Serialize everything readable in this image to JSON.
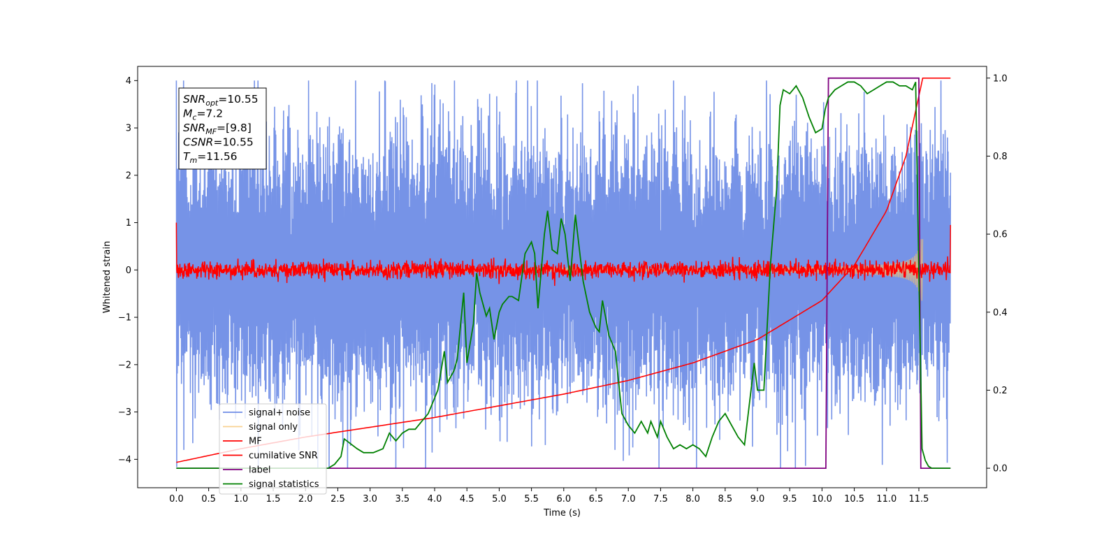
{
  "chart_data": {
    "type": "line",
    "xlabel": "Time (s)",
    "ylabel": "Whitened strain",
    "xlim": [
      -0.6,
      12.55
    ],
    "ylim": [
      -4.6,
      4.3
    ],
    "ylim_right": [
      -0.05,
      1.03
    ],
    "x_ticks": [
      "0.0",
      "0.5",
      "1.0",
      "1.5",
      "2.0",
      "2.5",
      "3.0",
      "3.5",
      "4.0",
      "4.5",
      "5.0",
      "5.5",
      "6.0",
      "6.5",
      "7.0",
      "7.5",
      "8.0",
      "8.5",
      "9.0",
      "9.5",
      "10.0",
      "10.5",
      "11.0",
      "11.5"
    ],
    "y_ticks": [
      "4",
      "3",
      "2",
      "1",
      "0",
      "−1",
      "−2",
      "−3",
      "−4"
    ],
    "y_ticks_right": [
      "1.0",
      "0.8",
      "0.6",
      "0.4",
      "0.2",
      "0.0"
    ],
    "grid": false,
    "legend_position": "lower-left",
    "annotation": {
      "lines": [
        {
          "sym": "SNR",
          "sub": "opt",
          "rest": "=10.55"
        },
        {
          "sym": "M",
          "sub": "c",
          "rest": "=7.2"
        },
        {
          "sym": "SNR",
          "sub": "MF",
          "rest": "=[9.8]"
        },
        {
          "sym": "CSNR",
          "sub": "",
          "rest": "=10.55"
        },
        {
          "sym": "T",
          "sub": "m",
          "rest": "=11.56"
        }
      ]
    },
    "series": [
      {
        "name": "signal+ noise",
        "color": "#6f8de6",
        "axis": "left",
        "noise_amplitude": 2.3,
        "x_range": [
          0.0,
          11.99
        ]
      },
      {
        "name": "signal only",
        "color": "#f5c26b",
        "axis": "left",
        "chirp_end": 11.56,
        "peak_amplitude": 0.65
      },
      {
        "name": "MF",
        "color": "#ff0000",
        "axis": "left",
        "noise_amplitude": 0.1
      },
      {
        "name": "cumilative SNR",
        "color": "#ff0000",
        "axis": "right",
        "x": [
          0.0,
          1.0,
          2.0,
          3.0,
          4.0,
          5.0,
          6.0,
          7.0,
          8.0,
          9.0,
          9.5,
          10.0,
          10.5,
          11.0,
          11.3,
          11.56
        ],
        "values": [
          0.015,
          0.05,
          0.08,
          0.105,
          0.13,
          0.16,
          0.19,
          0.225,
          0.27,
          0.33,
          0.38,
          0.43,
          0.52,
          0.66,
          0.8,
          1.0
        ]
      },
      {
        "name": "label",
        "color": "#800080",
        "axis": "right",
        "x": [
          0.0,
          10.06,
          10.1,
          11.5,
          11.53,
          11.99
        ],
        "values": [
          0.0,
          0.0,
          1.0,
          1.0,
          0.0,
          0.0
        ]
      },
      {
        "name": "signal statistics",
        "color": "#008000",
        "axis": "right",
        "x": [
          0.0,
          2.35,
          2.45,
          2.55,
          2.6,
          2.8,
          2.9,
          3.05,
          3.2,
          3.3,
          3.4,
          3.5,
          3.6,
          3.7,
          3.8,
          3.9,
          3.95,
          4.05,
          4.15,
          4.2,
          4.3,
          4.35,
          4.45,
          4.5,
          4.6,
          4.65,
          4.7,
          4.8,
          4.85,
          4.92,
          5.0,
          5.05,
          5.15,
          5.2,
          5.3,
          5.4,
          5.5,
          5.55,
          5.6,
          5.7,
          5.75,
          5.82,
          5.9,
          5.96,
          6.02,
          6.1,
          6.18,
          6.25,
          6.3,
          6.4,
          6.5,
          6.55,
          6.6,
          6.7,
          6.8,
          6.9,
          7.0,
          7.1,
          7.2,
          7.3,
          7.35,
          7.45,
          7.5,
          7.6,
          7.7,
          7.8,
          7.9,
          8.0,
          8.1,
          8.2,
          8.3,
          8.4,
          8.5,
          8.6,
          8.7,
          8.8,
          8.9,
          8.95,
          9.0,
          9.1,
          9.2,
          9.3,
          9.35,
          9.4,
          9.5,
          9.6,
          9.7,
          9.8,
          9.9,
          10.0,
          10.05,
          10.1,
          10.2,
          10.3,
          10.4,
          10.5,
          10.6,
          10.7,
          10.8,
          10.9,
          11.0,
          11.1,
          11.2,
          11.3,
          11.4,
          11.45,
          11.5,
          11.55,
          11.6,
          11.65,
          11.7,
          11.8,
          11.9,
          11.99
        ],
        "values": [
          0.0,
          0.0,
          0.01,
          0.03,
          0.075,
          0.05,
          0.04,
          0.04,
          0.05,
          0.09,
          0.07,
          0.09,
          0.1,
          0.1,
          0.12,
          0.14,
          0.16,
          0.2,
          0.3,
          0.22,
          0.25,
          0.28,
          0.45,
          0.27,
          0.37,
          0.5,
          0.45,
          0.39,
          0.41,
          0.33,
          0.4,
          0.42,
          0.44,
          0.44,
          0.43,
          0.55,
          0.58,
          0.55,
          0.41,
          0.6,
          0.66,
          0.56,
          0.55,
          0.64,
          0.6,
          0.48,
          0.65,
          0.55,
          0.48,
          0.4,
          0.36,
          0.35,
          0.43,
          0.34,
          0.3,
          0.14,
          0.11,
          0.09,
          0.12,
          0.09,
          0.12,
          0.08,
          0.12,
          0.08,
          0.05,
          0.06,
          0.05,
          0.06,
          0.05,
          0.03,
          0.08,
          0.12,
          0.14,
          0.11,
          0.08,
          0.06,
          0.2,
          0.27,
          0.2,
          0.2,
          0.52,
          0.72,
          0.93,
          0.97,
          0.96,
          0.98,
          0.95,
          0.9,
          0.86,
          0.87,
          0.92,
          0.95,
          0.97,
          0.98,
          0.99,
          0.99,
          0.98,
          0.96,
          0.97,
          0.98,
          0.99,
          0.99,
          0.98,
          0.98,
          0.97,
          0.99,
          0.5,
          0.05,
          0.02,
          0.005,
          0.0,
          0.0,
          0.0,
          0.0
        ]
      }
    ]
  }
}
